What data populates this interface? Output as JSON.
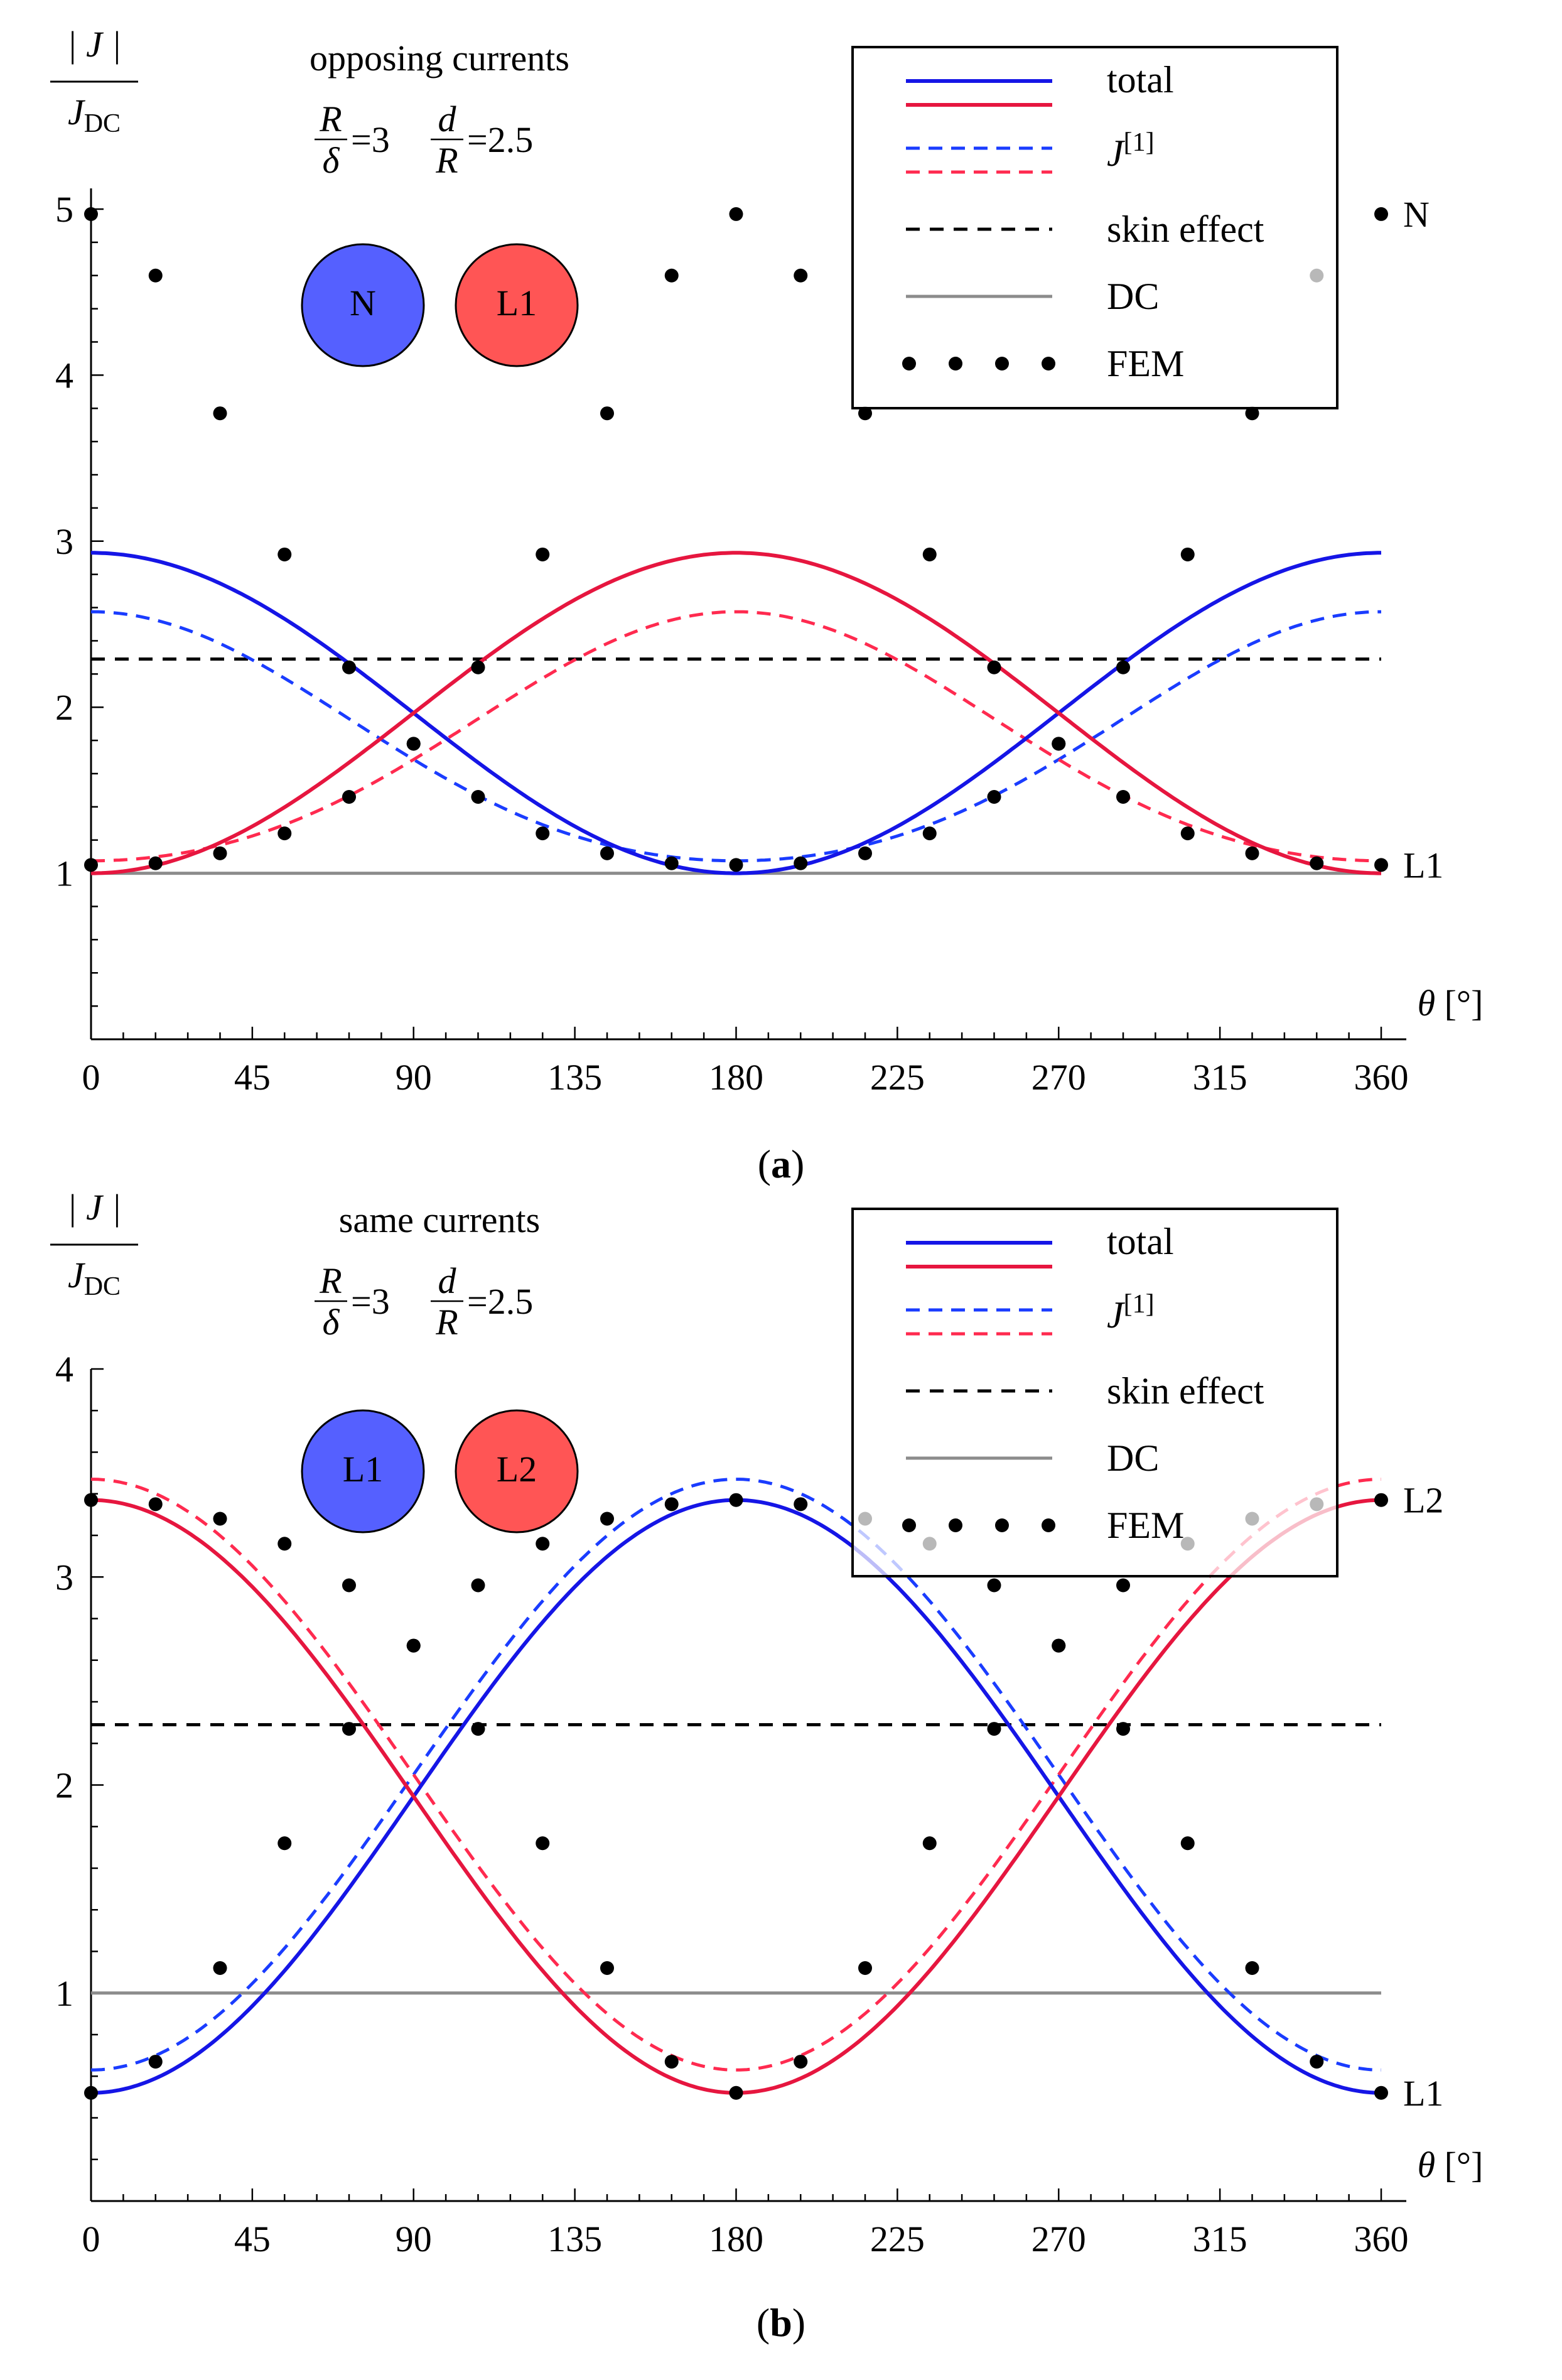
{
  "chart_data": [
    {
      "type": "line",
      "panel_label": "a",
      "ylabel_numerator": "| J |",
      "ylabel_denominator_base": "J",
      "ylabel_denominator_sub": "DC",
      "xlabel": "θ [°]",
      "xlim": [
        0,
        360
      ],
      "ylim": [
        0,
        5
      ],
      "x_ticks": [
        0,
        45,
        90,
        135,
        180,
        225,
        270,
        315,
        360
      ],
      "y_ticks": [
        1,
        2,
        3,
        4,
        5
      ],
      "annotation": {
        "title": "opposing currents",
        "ratio1_num": "R",
        "ratio1_den": "δ",
        "ratio1_value": "=3",
        "ratio2_num": "d",
        "ratio2_den": "R",
        "ratio2_value": "=2.5"
      },
      "conductors": [
        {
          "label": "N",
          "color": "#5560ff"
        },
        {
          "label": "L1",
          "color": "#ff5555"
        }
      ],
      "end_labels": [
        {
          "text": "N",
          "y": 4.97
        },
        {
          "text": "L1",
          "y": 1.05
        }
      ],
      "params": {
        "A": 1.965,
        "B": 0.965,
        "C": 0.0,
        "A1": 1.755,
        "B1": 0.75,
        "C1": 0.07,
        "skin": 2.29,
        "dc": 1.0
      },
      "legend": {
        "position": "top-right",
        "entries": [
          {
            "label": "total",
            "style": "solid-pair"
          },
          {
            "label": "J",
            "sup": "[1]",
            "style": "dashed-pair"
          },
          {
            "label": "skin effect",
            "style": "dashed-black"
          },
          {
            "label": "DC",
            "style": "solid-gray"
          },
          {
            "label": "FEM",
            "style": "dots"
          }
        ]
      },
      "series": [
        {
          "role": "total-blue",
          "color": "#1515e6",
          "dash": "solid"
        },
        {
          "role": "total-red",
          "color": "#e6163f",
          "dash": "solid"
        },
        {
          "role": "j1-blue",
          "color": "#1a3cff",
          "dash": "dashed"
        },
        {
          "role": "j1-red",
          "color": "#ff2a4f",
          "dash": "dashed"
        },
        {
          "role": "skin-effect",
          "color": "#000000",
          "dash": "dashed",
          "value": 2.29
        },
        {
          "role": "dc",
          "color": "#8c8c8c",
          "dash": "solid",
          "value": 1.0
        }
      ],
      "fem_x": [
        0,
        18,
        36,
        54,
        72,
        90,
        108,
        126,
        144,
        162,
        180,
        198,
        216,
        234,
        252,
        270,
        288,
        306,
        324,
        342,
        360
      ],
      "fem_blue": [
        4.97,
        4.6,
        3.77,
        2.92,
        2.24,
        1.78,
        1.46,
        1.24,
        1.12,
        1.06,
        1.05,
        1.06,
        1.12,
        1.24,
        1.46,
        1.78,
        2.24,
        2.92,
        3.77,
        4.6,
        4.97
      ],
      "fem_red": [
        1.05,
        1.06,
        1.12,
        1.24,
        1.46,
        1.78,
        2.24,
        2.92,
        3.77,
        4.6,
        4.97,
        4.6,
        3.77,
        2.92,
        2.24,
        1.78,
        1.46,
        1.24,
        1.12,
        1.06,
        1.05
      ]
    },
    {
      "type": "line",
      "panel_label": "b",
      "ylabel_numerator": "| J |",
      "ylabel_denominator_base": "J",
      "ylabel_denominator_sub": "DC",
      "xlabel": "θ [°]",
      "xlim": [
        0,
        360
      ],
      "ylim": [
        0,
        4
      ],
      "x_ticks": [
        0,
        45,
        90,
        135,
        180,
        225,
        270,
        315,
        360
      ],
      "y_ticks": [
        1,
        2,
        3,
        4
      ],
      "annotation": {
        "title": "same currents",
        "ratio1_num": "R",
        "ratio1_den": "δ",
        "ratio1_value": "=3",
        "ratio2_num": "d",
        "ratio2_den": "R",
        "ratio2_value": "=2.5"
      },
      "conductors": [
        {
          "label": "L1",
          "color": "#5560ff"
        },
        {
          "label": "L2",
          "color": "#ff5555"
        }
      ],
      "end_labels": [
        {
          "text": "L2",
          "y": 3.37
        },
        {
          "text": "L1",
          "y": 0.52
        }
      ],
      "params": {
        "A": 1.945,
        "B": -1.425,
        "C": 0.0,
        "A1": 2.05,
        "B1": -1.42,
        "C1": 0.0,
        "skin": 2.29,
        "dc": 1.0
      },
      "legend": {
        "position": "top-right",
        "entries": [
          {
            "label": "total",
            "style": "solid-pair"
          },
          {
            "label": "J",
            "sup": "[1]",
            "style": "dashed-pair"
          },
          {
            "label": "skin effect",
            "style": "dashed-black"
          },
          {
            "label": "DC",
            "style": "solid-gray"
          },
          {
            "label": "FEM",
            "style": "dots"
          }
        ]
      },
      "series": [
        {
          "role": "total-blue",
          "color": "#1515e6",
          "dash": "solid"
        },
        {
          "role": "total-red",
          "color": "#e6163f",
          "dash": "solid"
        },
        {
          "role": "j1-blue",
          "color": "#1a3cff",
          "dash": "dashed"
        },
        {
          "role": "j1-red",
          "color": "#ff2a4f",
          "dash": "dashed"
        },
        {
          "role": "skin-effect",
          "color": "#000000",
          "dash": "dashed",
          "value": 2.29
        },
        {
          "role": "dc",
          "color": "#8c8c8c",
          "dash": "solid",
          "value": 1.0
        }
      ],
      "fem_x": [
        0,
        18,
        36,
        54,
        72,
        90,
        108,
        126,
        144,
        162,
        180,
        198,
        216,
        234,
        252,
        270,
        288,
        306,
        324,
        342,
        360
      ],
      "fem_blue": [
        0.52,
        0.67,
        1.12,
        1.72,
        2.27,
        2.67,
        2.96,
        3.16,
        3.28,
        3.35,
        3.37,
        3.35,
        3.28,
        3.16,
        2.96,
        2.67,
        2.27,
        1.72,
        1.12,
        0.67,
        0.52
      ],
      "fem_red": [
        3.37,
        3.35,
        3.28,
        3.16,
        2.96,
        2.67,
        2.27,
        1.72,
        1.12,
        0.67,
        0.52,
        0.67,
        1.12,
        1.72,
        2.27,
        2.67,
        2.96,
        3.16,
        3.28,
        3.35,
        3.37
      ]
    }
  ]
}
